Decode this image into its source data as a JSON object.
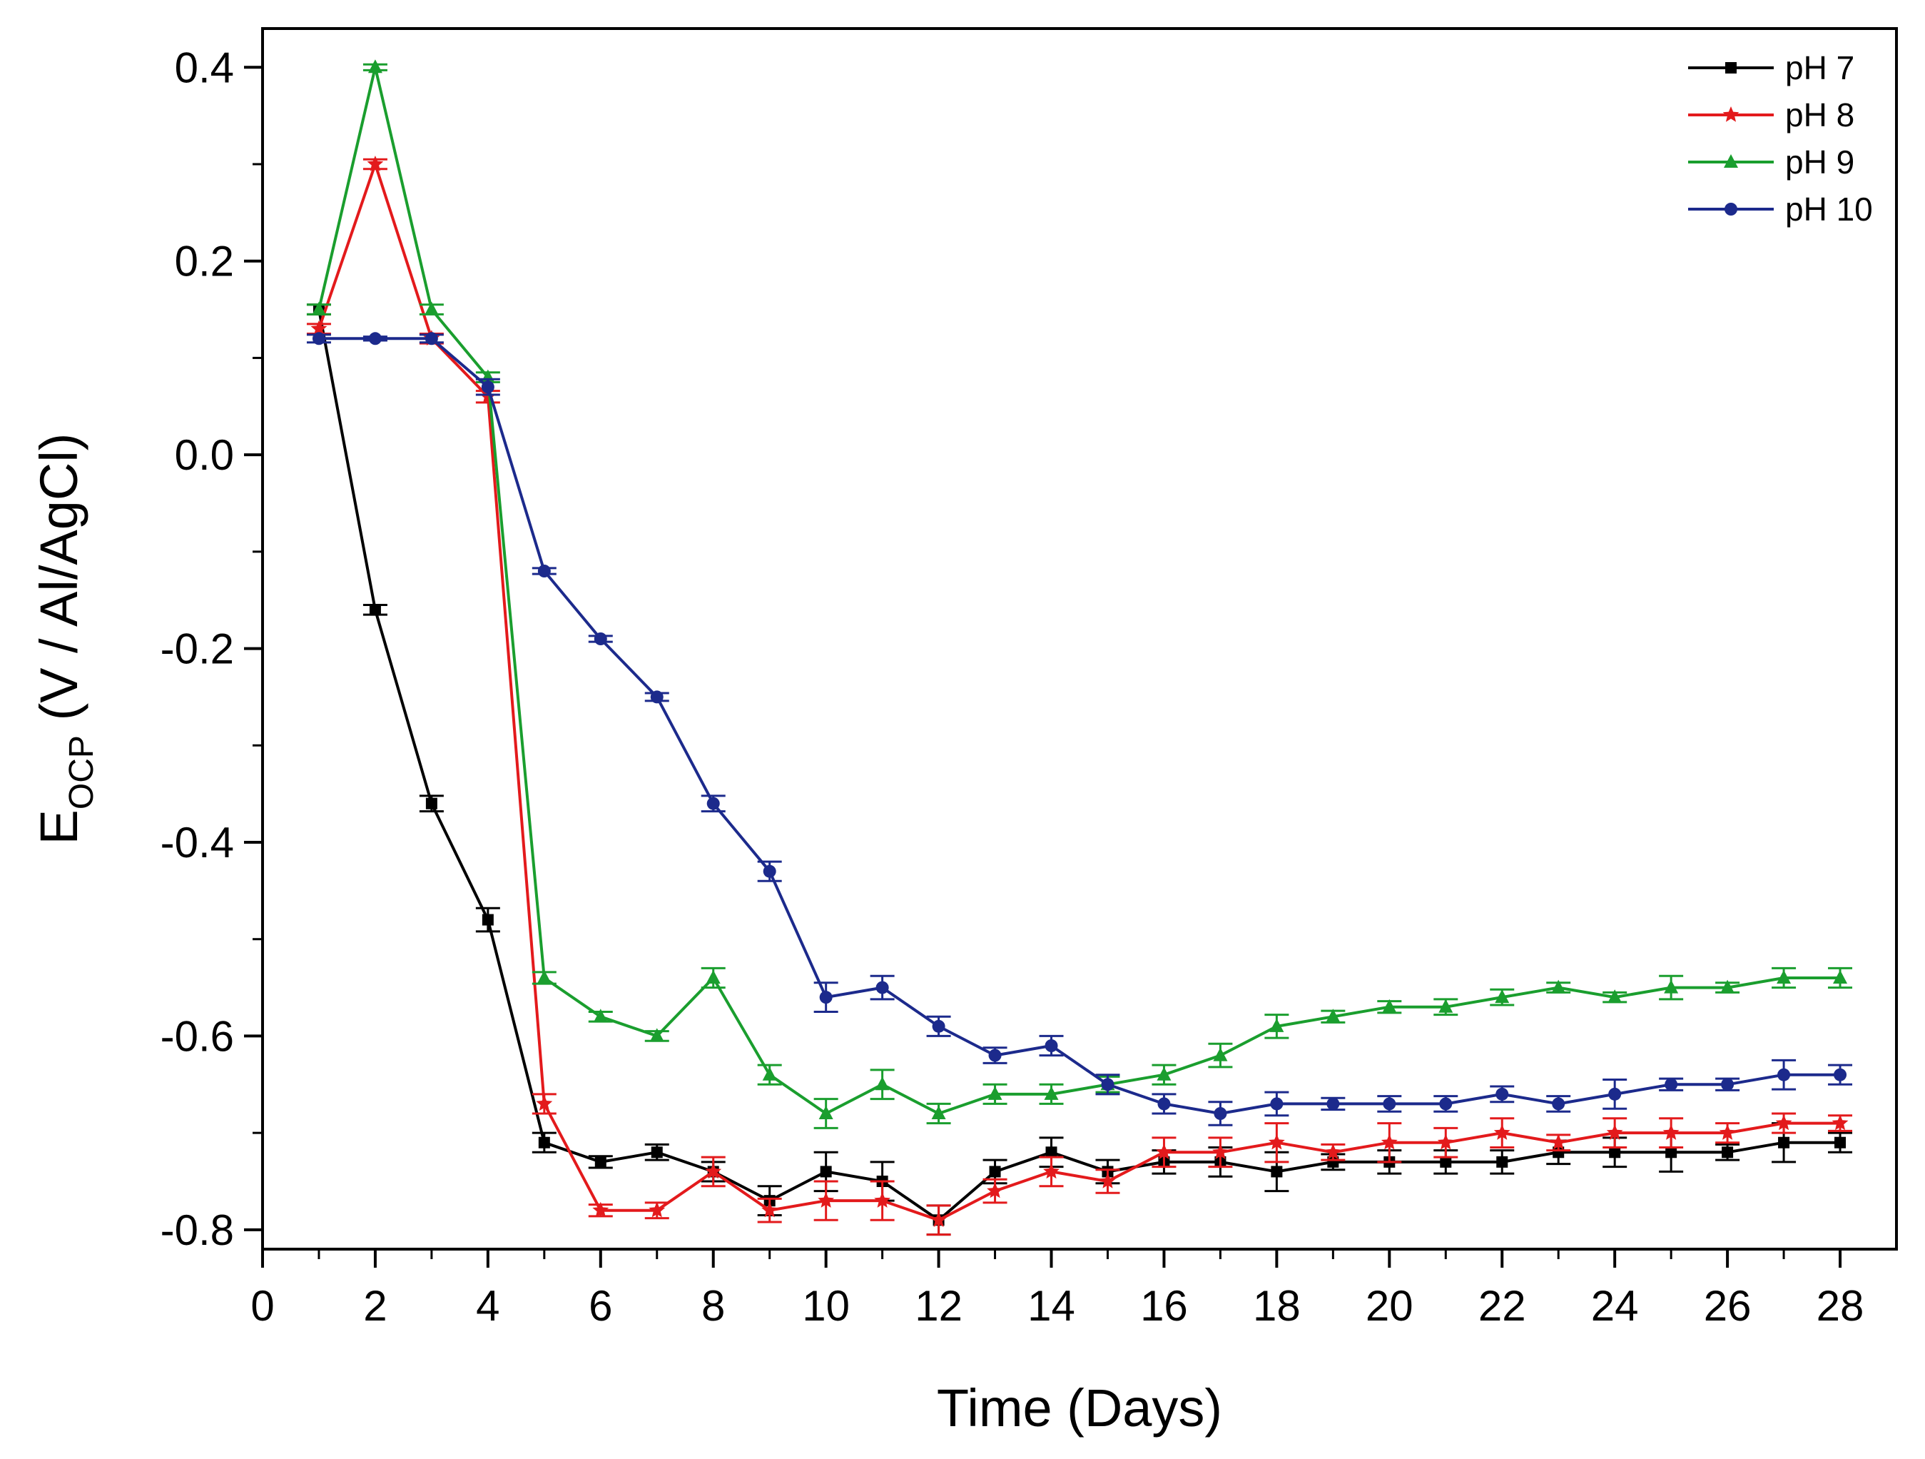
{
  "chart_data": {
    "type": "line",
    "xlabel": "Time (Days)",
    "ylabel": {
      "main": "E",
      "subscript": "OCP",
      "rest": " (V / Al/AgCl)"
    },
    "xlim": [
      0,
      29
    ],
    "ylim": [
      -0.82,
      0.44
    ],
    "xticks": [
      0,
      2,
      4,
      6,
      8,
      10,
      12,
      14,
      16,
      18,
      20,
      22,
      24,
      26,
      28
    ],
    "yticks": [
      0.4,
      0.2,
      0.0,
      -0.2,
      -0.4,
      -0.6,
      -0.8
    ],
    "ytick_labels": [
      "0.4",
      "0.2",
      "0.0",
      "-0.2",
      "-0.4",
      "-0.6",
      "-0.8"
    ],
    "grid": false,
    "legend_position": "top-right",
    "x": [
      1,
      2,
      3,
      4,
      5,
      6,
      7,
      8,
      9,
      10,
      11,
      12,
      13,
      14,
      15,
      16,
      17,
      18,
      19,
      20,
      21,
      22,
      23,
      24,
      25,
      26,
      27,
      28
    ],
    "series": [
      {
        "name": "pH 7",
        "color": "#000000",
        "marker": "square",
        "values": [
          0.15,
          -0.16,
          -0.36,
          -0.48,
          -0.71,
          -0.73,
          -0.72,
          -0.74,
          -0.77,
          -0.74,
          -0.75,
          -0.79,
          -0.74,
          -0.72,
          -0.74,
          -0.73,
          -0.73,
          -0.74,
          -0.73,
          -0.73,
          -0.73,
          -0.73,
          -0.72,
          -0.72,
          -0.72,
          -0.72,
          -0.71,
          -0.71
        ],
        "errors": [
          0.005,
          0.005,
          0.008,
          0.012,
          0.01,
          0.006,
          0.008,
          0.01,
          0.015,
          0.02,
          0.02,
          0.015,
          0.012,
          0.015,
          0.012,
          0.012,
          0.015,
          0.02,
          0.008,
          0.012,
          0.012,
          0.012,
          0.012,
          0.015,
          0.02,
          0.008,
          0.02,
          0.01
        ]
      },
      {
        "name": "pH 8",
        "color": "#e31a1c",
        "marker": "star",
        "values": [
          0.13,
          0.3,
          0.12,
          0.06,
          -0.67,
          -0.78,
          -0.78,
          -0.74,
          -0.78,
          -0.77,
          -0.77,
          -0.79,
          -0.76,
          -0.74,
          -0.75,
          -0.72,
          -0.72,
          -0.71,
          -0.72,
          -0.71,
          -0.71,
          -0.7,
          -0.71,
          -0.7,
          -0.7,
          -0.7,
          -0.69,
          -0.69
        ],
        "errors": [
          0.005,
          0.005,
          0.005,
          0.006,
          0.01,
          0.006,
          0.008,
          0.015,
          0.012,
          0.02,
          0.02,
          0.015,
          0.012,
          0.015,
          0.012,
          0.015,
          0.015,
          0.02,
          0.008,
          0.02,
          0.015,
          0.015,
          0.008,
          0.015,
          0.015,
          0.01,
          0.01,
          0.008
        ]
      },
      {
        "name": "pH 9",
        "color": "#1a9e2e",
        "marker": "triangle",
        "values": [
          0.15,
          0.4,
          0.15,
          0.08,
          -0.54,
          -0.58,
          -0.6,
          -0.54,
          -0.64,
          -0.68,
          -0.65,
          -0.68,
          -0.66,
          -0.66,
          -0.65,
          -0.64,
          -0.62,
          -0.59,
          -0.58,
          -0.57,
          -0.57,
          -0.56,
          -0.55,
          -0.56,
          -0.55,
          -0.55,
          -0.54,
          -0.54
        ],
        "errors": [
          0.005,
          0.003,
          0.005,
          0.005,
          0.006,
          0.005,
          0.005,
          0.01,
          0.01,
          0.015,
          0.015,
          0.01,
          0.01,
          0.01,
          0.008,
          0.01,
          0.012,
          0.012,
          0.006,
          0.006,
          0.008,
          0.008,
          0.005,
          0.005,
          0.012,
          0.005,
          0.01,
          0.01
        ]
      },
      {
        "name": "pH 10",
        "color": "#1c2a8c",
        "marker": "circle",
        "values": [
          0.12,
          0.12,
          0.12,
          0.07,
          -0.12,
          -0.19,
          -0.25,
          -0.36,
          -0.43,
          -0.56,
          -0.55,
          -0.59,
          -0.62,
          -0.61,
          -0.65,
          -0.67,
          -0.68,
          -0.67,
          -0.67,
          -0.67,
          -0.67,
          -0.66,
          -0.67,
          -0.66,
          -0.65,
          -0.65,
          -0.64,
          -0.64
        ],
        "errors": [
          0.004,
          0.002,
          0.004,
          0.008,
          0.003,
          0.003,
          0.004,
          0.008,
          0.01,
          0.015,
          0.012,
          0.01,
          0.008,
          0.01,
          0.01,
          0.01,
          0.012,
          0.012,
          0.006,
          0.008,
          0.008,
          0.008,
          0.008,
          0.015,
          0.006,
          0.006,
          0.015,
          0.01
        ]
      }
    ]
  }
}
